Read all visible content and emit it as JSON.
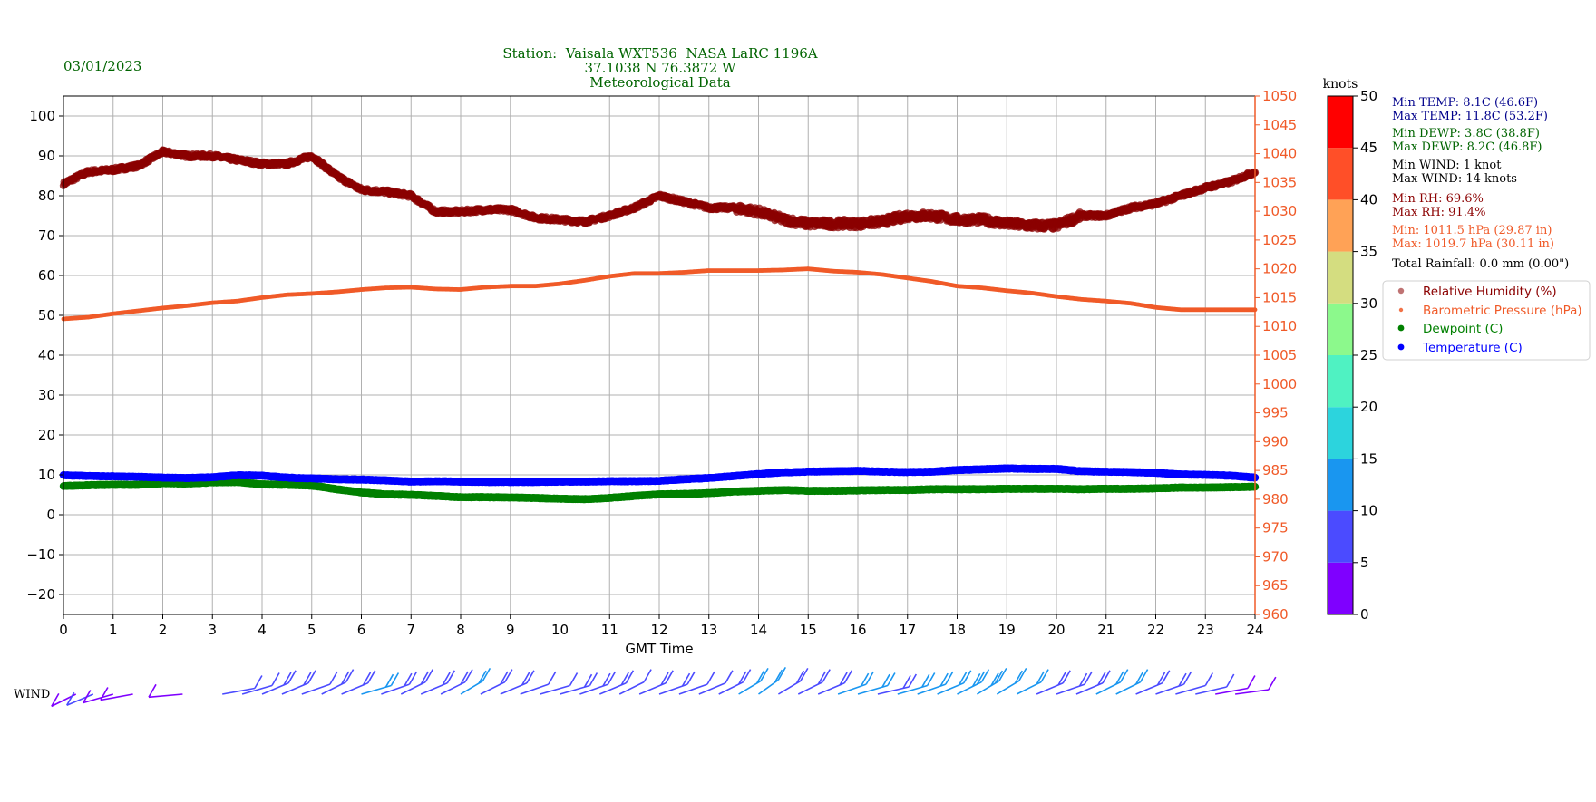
{
  "header": {
    "date": "03/01/2023",
    "station_line": "Station:  Vaisala WXT536  NASA LaRC 1196A",
    "coords_line": "37.1038 N 76.3872 W",
    "subtitle": "Meteorological Data"
  },
  "colors": {
    "header_text": "#006400",
    "temperature": "#0000ff",
    "dewpoint": "#008000",
    "relative_humidity": "#8b0000",
    "pressure": "#f05a28",
    "stats_temp": "#00008b",
    "stats_dewp": "#006400",
    "stats_wind": "#000000",
    "stats_rh": "#8b0000",
    "stats_pressure": "#f05a28",
    "grid": "#b0b0b0"
  },
  "stats": [
    {
      "text": "Min TEMP: 8.1C (46.6F)",
      "color": "#00008b"
    },
    {
      "text": "Max TEMP: 11.8C (53.2F)",
      "color": "#00008b"
    },
    {
      "text": "Min DEWP: 3.8C (38.8F)",
      "color": "#006400"
    },
    {
      "text": "Max DEWP: 8.2C (46.8F)",
      "color": "#006400"
    },
    {
      "text": "Min WIND: 1 knot",
      "color": "#000000"
    },
    {
      "text": "Max WIND: 14 knots",
      "color": "#000000"
    },
    {
      "text": "Min RH: 69.6%",
      "color": "#8b0000"
    },
    {
      "text": "Max RH: 91.4%",
      "color": "#8b0000"
    },
    {
      "text": "Min: 1011.5 hPa (29.87 in)",
      "color": "#f05a28"
    },
    {
      "text": "Max: 1019.7 hPa (30.11 in)",
      "color": "#f05a28"
    },
    {
      "text": "Total Rainfall: 0.0 mm (0.00\")",
      "color": "#000000"
    }
  ],
  "wind_label": "WIND",
  "colorbar": {
    "label": "knots",
    "ticks": [
      "0",
      "5",
      "10",
      "15",
      "20",
      "25",
      "30",
      "35",
      "40",
      "45",
      "50"
    ],
    "colors": [
      "#7f00ff",
      "#4b4bff",
      "#1996f0",
      "#2cd4dd",
      "#4ff2c2",
      "#8cf98c",
      "#d4dd80",
      "#ffa256",
      "#ff4f28",
      "#ff0000"
    ]
  },
  "chart_data": {
    "type": "scatter",
    "xlabel": "GMT Time",
    "xlim": [
      0,
      24
    ],
    "x_ticks": [
      "0",
      "1",
      "2",
      "3",
      "4",
      "5",
      "6",
      "7",
      "8",
      "9",
      "10",
      "11",
      "12",
      "13",
      "14",
      "15",
      "16",
      "17",
      "18",
      "19",
      "20",
      "21",
      "22",
      "23",
      "24"
    ],
    "ylim_left": [
      -25,
      105
    ],
    "y_ticks_left": [
      "100",
      "90",
      "80",
      "70",
      "60",
      "50",
      "40",
      "30",
      "20",
      "10",
      "0",
      "−10",
      "−20"
    ],
    "ylim_right": [
      960,
      1050
    ],
    "y_ticks_right": [
      "1050",
      "1045",
      "1040",
      "1035",
      "1030",
      "1025",
      "1020",
      "1015",
      "1010",
      "1005",
      "1000",
      "995",
      "990",
      "985",
      "980",
      "975",
      "970",
      "965",
      "960"
    ],
    "grid": true,
    "legend": [
      {
        "name": "Relative Humidity (%)",
        "color": "#8b0000"
      },
      {
        "name": "Barometric Pressure (hPa)",
        "color": "#f05a28"
      },
      {
        "name": "Dewpoint (C)",
        "color": "#008000"
      },
      {
        "name": "Temperature (C)",
        "color": "#0000ff"
      }
    ],
    "series": [
      {
        "name": "Relative Humidity (%)",
        "axis": "left",
        "color": "#8b0000",
        "x": [
          0,
          0.5,
          1,
          1.5,
          2,
          2.5,
          3,
          3.5,
          4,
          4.5,
          5,
          5.5,
          6,
          6.5,
          7,
          7.5,
          8,
          8.5,
          9,
          9.5,
          10,
          10.5,
          11,
          11.5,
          12,
          12.5,
          13,
          13.5,
          14,
          14.5,
          15,
          15.5,
          16,
          16.5,
          17,
          17.5,
          18,
          18.5,
          19,
          19.5,
          20,
          20.5,
          21,
          21.5,
          22,
          22.5,
          23,
          23.5,
          24
        ],
        "values": [
          83,
          86,
          86.5,
          87.5,
          91,
          90,
          90,
          89,
          88,
          88,
          90,
          85,
          81.5,
          81,
          80,
          76,
          76,
          76.5,
          76.5,
          74.5,
          74,
          73.5,
          75,
          77,
          80,
          78.5,
          77,
          77,
          76,
          74,
          73,
          73,
          73,
          73.5,
          75,
          75,
          74,
          74,
          73,
          72.5,
          72.5,
          75,
          75,
          77,
          78,
          80,
          82,
          83.5,
          86
        ]
      },
      {
        "name": "Barometric Pressure (hPa)",
        "axis": "right",
        "color": "#f05a28",
        "x": [
          0,
          0.5,
          1,
          1.5,
          2,
          2.5,
          3,
          3.5,
          4,
          4.5,
          5,
          5.5,
          6,
          6.5,
          7,
          7.5,
          8,
          8.5,
          9,
          9.5,
          10,
          10.5,
          11,
          11.5,
          12,
          12.5,
          13,
          13.5,
          14,
          14.5,
          15,
          15.5,
          16,
          16.5,
          17,
          17.5,
          18,
          18.5,
          19,
          19.5,
          20,
          20.5,
          21,
          21.5,
          22,
          22.5,
          23,
          23.5,
          24
        ],
        "values": [
          1011.3,
          1011.6,
          1012.2,
          1012.7,
          1013.2,
          1013.6,
          1014.1,
          1014.4,
          1015.0,
          1015.5,
          1015.7,
          1016.0,
          1016.4,
          1016.7,
          1016.8,
          1016.5,
          1016.4,
          1016.8,
          1017.0,
          1017.0,
          1017.4,
          1018.0,
          1018.7,
          1019.2,
          1019.2,
          1019.4,
          1019.7,
          1019.7,
          1019.7,
          1019.8,
          1020.0,
          1019.6,
          1019.4,
          1019.0,
          1018.4,
          1017.8,
          1017.0,
          1016.7,
          1016.2,
          1015.8,
          1015.2,
          1014.7,
          1014.4,
          1014.0,
          1013.3,
          1012.9,
          1012.9,
          1012.9,
          1012.9
        ]
      },
      {
        "name": "Dewpoint (C)",
        "axis": "left",
        "color": "#008000",
        "x": [
          0,
          0.5,
          1,
          1.5,
          2,
          2.5,
          3,
          3.5,
          4,
          4.5,
          5,
          5.5,
          6,
          6.5,
          7,
          7.5,
          8,
          8.5,
          9,
          9.5,
          10,
          10.5,
          11,
          11.5,
          12,
          12.5,
          13,
          13.5,
          14,
          14.5,
          15,
          15.5,
          16,
          16.5,
          17,
          17.5,
          18,
          18.5,
          19,
          19.5,
          20,
          20.5,
          21,
          21.5,
          22,
          22.5,
          23,
          23.5,
          24
        ],
        "values": [
          7.2,
          7.4,
          7.5,
          7.5,
          7.9,
          7.8,
          8.1,
          8.2,
          7.6,
          7.5,
          7.3,
          6.4,
          5.6,
          5.1,
          5.0,
          4.7,
          4.4,
          4.4,
          4.3,
          4.2,
          4.0,
          3.9,
          4.2,
          4.7,
          5.1,
          5.2,
          5.4,
          5.8,
          6.0,
          6.2,
          6.0,
          6.0,
          6.1,
          6.2,
          6.2,
          6.4,
          6.4,
          6.4,
          6.5,
          6.5,
          6.5,
          6.4,
          6.5,
          6.5,
          6.6,
          6.8,
          6.8,
          6.9,
          7.0
        ]
      },
      {
        "name": "Temperature (C)",
        "axis": "left",
        "color": "#0000ff",
        "x": [
          0,
          0.5,
          1,
          1.5,
          2,
          2.5,
          3,
          3.5,
          4,
          4.5,
          5,
          5.5,
          6,
          6.5,
          7,
          7.5,
          8,
          8.5,
          9,
          9.5,
          10,
          10.5,
          11,
          11.5,
          12,
          12.5,
          13,
          13.5,
          14,
          14.5,
          15,
          15.5,
          16,
          16.5,
          17,
          17.5,
          18,
          18.5,
          19,
          19.5,
          20,
          20.5,
          21,
          21.5,
          22,
          22.5,
          23,
          23.5,
          24
        ],
        "values": [
          9.9,
          9.7,
          9.6,
          9.5,
          9.3,
          9.2,
          9.4,
          9.9,
          9.8,
          9.3,
          9.1,
          8.9,
          8.8,
          8.6,
          8.3,
          8.4,
          8.3,
          8.2,
          8.2,
          8.2,
          8.3,
          8.3,
          8.4,
          8.4,
          8.5,
          8.9,
          9.2,
          9.7,
          10.2,
          10.6,
          10.8,
          10.9,
          11.0,
          10.8,
          10.7,
          10.8,
          11.2,
          11.4,
          11.6,
          11.5,
          11.5,
          10.9,
          10.8,
          10.7,
          10.5,
          10.1,
          10.0,
          9.8,
          9.3
        ]
      }
    ],
    "wind_barbs": {
      "x": [
        0.25,
        0.6,
        1.0,
        1.4,
        2.4,
        3.2,
        3.6,
        4.0,
        4.4,
        4.8,
        5.2,
        5.6,
        6.0,
        6.4,
        6.8,
        7.2,
        7.6,
        8.0,
        8.4,
        8.8,
        9.2,
        9.6,
        10.0,
        10.4,
        10.8,
        11.2,
        11.6,
        12.0,
        12.4,
        12.8,
        13.2,
        13.6,
        14.0,
        14.4,
        14.8,
        15.2,
        15.6,
        16.0,
        16.4,
        16.8,
        17.2,
        17.6,
        18.0,
        18.4,
        18.8,
        19.2,
        19.6,
        20.0,
        20.4,
        20.8,
        21.2,
        21.6,
        22.0,
        22.4,
        22.8,
        23.2,
        23.6
      ],
      "speed_knots": [
        4,
        5,
        3,
        2,
        1,
        6,
        5,
        8,
        9,
        7,
        8,
        9,
        10,
        8,
        9,
        8,
        9,
        10,
        9,
        8,
        7,
        6,
        8,
        9,
        8,
        7,
        9,
        8,
        6,
        7,
        9,
        10,
        12,
        9,
        8,
        9,
        10,
        11,
        9,
        10,
        11,
        12,
        13,
        14,
        12,
        10,
        9,
        8,
        9,
        10,
        11,
        9,
        8,
        7,
        6,
        4,
        3
      ],
      "direction_deg": [
        225,
        230,
        240,
        250,
        260,
        70,
        60,
        50,
        50,
        55,
        45,
        50,
        60,
        55,
        45,
        50,
        45,
        40,
        45,
        50,
        55,
        60,
        60,
        55,
        50,
        45,
        50,
        55,
        55,
        50,
        45,
        40,
        35,
        40,
        45,
        50,
        55,
        60,
        65,
        60,
        55,
        50,
        45,
        40,
        40,
        45,
        50,
        55,
        50,
        45,
        45,
        50,
        55,
        60,
        65,
        70,
        75
      ]
    }
  }
}
